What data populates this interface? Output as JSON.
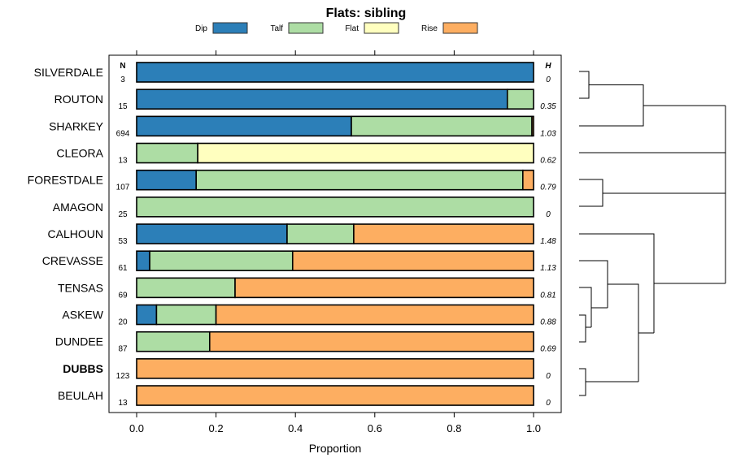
{
  "chart_data": {
    "type": "bar",
    "orientation": "horizontal",
    "stacked": true,
    "title": "Flats: sibling",
    "xlabel": "Proportion",
    "ylabel": "",
    "xlim": [
      0,
      1
    ],
    "x_ticks": [
      "0.0",
      "0.2",
      "0.4",
      "0.6",
      "0.8",
      "1.0"
    ],
    "legend": {
      "placement": "top",
      "entries": [
        "Dip",
        "Talf",
        "Flat",
        "Rise"
      ]
    },
    "colors": {
      "Dip": "#2c7fb8",
      "Talf": "#addda4",
      "Flat": "#ffffbf",
      "Rise": "#fdae61"
    },
    "n_header": "N",
    "h_header": "H",
    "categories": [
      {
        "label": "SILVERDALE",
        "bold": false,
        "n": "3",
        "h": "0",
        "Dip": 1.0,
        "Talf": 0.0,
        "Flat": 0.0,
        "Rise": 0.0
      },
      {
        "label": "ROUTON",
        "bold": false,
        "n": "15",
        "h": "0.35",
        "Dip": 0.934,
        "Talf": 0.066,
        "Flat": 0.0,
        "Rise": 0.0
      },
      {
        "label": "SHARKEY",
        "bold": false,
        "n": "694",
        "h": "1.03",
        "Dip": 0.541,
        "Talf": 0.455,
        "Flat": 0.0,
        "Rise": 0.004
      },
      {
        "label": "CLEORA",
        "bold": false,
        "n": "13",
        "h": "0.62",
        "Dip": 0.0,
        "Talf": 0.154,
        "Flat": 0.846,
        "Rise": 0.0
      },
      {
        "label": "FORESTDALE",
        "bold": false,
        "n": "107",
        "h": "0.79",
        "Dip": 0.15,
        "Talf": 0.823,
        "Flat": 0.0,
        "Rise": 0.027
      },
      {
        "label": "AMAGON",
        "bold": false,
        "n": "25",
        "h": "0",
        "Dip": 0.0,
        "Talf": 1.0,
        "Flat": 0.0,
        "Rise": 0.0
      },
      {
        "label": "CALHOUN",
        "bold": false,
        "n": "53",
        "h": "1.48",
        "Dip": 0.379,
        "Talf": 0.168,
        "Flat": 0.0,
        "Rise": 0.453
      },
      {
        "label": "CREVASSE",
        "bold": false,
        "n": "61",
        "h": "1.13",
        "Dip": 0.033,
        "Talf": 0.36,
        "Flat": 0.0,
        "Rise": 0.607
      },
      {
        "label": "TENSAS",
        "bold": false,
        "n": "69",
        "h": "0.81",
        "Dip": 0.0,
        "Talf": 0.248,
        "Flat": 0.0,
        "Rise": 0.752
      },
      {
        "label": "ASKEW",
        "bold": false,
        "n": "20",
        "h": "0.88",
        "Dip": 0.05,
        "Talf": 0.15,
        "Flat": 0.0,
        "Rise": 0.8
      },
      {
        "label": "DUNDEE",
        "bold": false,
        "n": "87",
        "h": "0.69",
        "Dip": 0.0,
        "Talf": 0.184,
        "Flat": 0.0,
        "Rise": 0.816
      },
      {
        "label": "DUBBS",
        "bold": true,
        "n": "123",
        "h": "0",
        "Dip": 0.0,
        "Talf": 0.0,
        "Flat": 0.0,
        "Rise": 1.0
      },
      {
        "label": "BEULAH",
        "bold": false,
        "n": "13",
        "h": "0",
        "Dip": 0.0,
        "Talf": 0.0,
        "Flat": 0.0,
        "Rise": 1.0
      }
    ]
  }
}
